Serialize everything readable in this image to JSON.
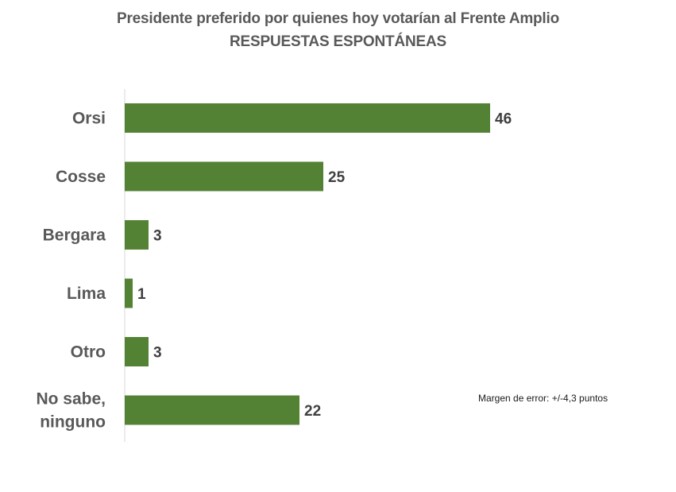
{
  "chart_data": {
    "type": "bar",
    "orientation": "horizontal",
    "title": "Presidente preferido por quienes hoy votarían al Frente Amplio",
    "subtitle": "RESPUESTAS ESPONTÁNEAS",
    "categories": [
      [
        "Orsi"
      ],
      [
        "Cosse"
      ],
      [
        "Bergara"
      ],
      [
        "Lima"
      ],
      [
        "Otro"
      ],
      [
        "No sabe,",
        "ninguno"
      ]
    ],
    "values": [
      46,
      25,
      3,
      1,
      3,
      22
    ],
    "color": "#548235",
    "xlim": [
      0,
      60
    ],
    "grid": false,
    "legend": "none"
  },
  "note": "Margen de error: +/-4,3 puntos"
}
